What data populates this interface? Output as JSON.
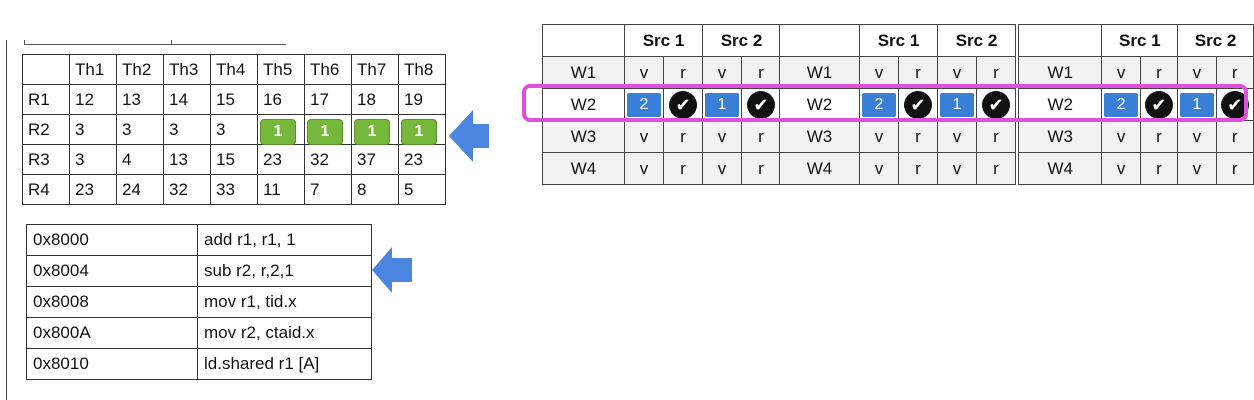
{
  "registers": {
    "header": [
      "",
      "Th1",
      "Th2",
      "Th3",
      "Th4",
      "Th5",
      "Th6",
      "Th7",
      "Th8"
    ],
    "rows": [
      {
        "name": "R1",
        "values": [
          "12",
          "13",
          "14",
          "15",
          "16",
          "17",
          "18",
          "19"
        ]
      },
      {
        "name": "R2",
        "values": [
          "3",
          "3",
          "3",
          "3",
          "1",
          "1",
          "1",
          "1"
        ]
      },
      {
        "name": "R3",
        "values": [
          "3",
          "4",
          "13",
          "15",
          "23",
          "32",
          "37",
          "23"
        ]
      },
      {
        "name": "R4",
        "values": [
          "23",
          "24",
          "32",
          "33",
          "11",
          "7",
          "8",
          "5"
        ]
      }
    ]
  },
  "instructions": [
    {
      "addr": "0x8000",
      "op": "add r1, r1, 1"
    },
    {
      "addr": "0x8004",
      "op": "sub r2, r,2,1"
    },
    {
      "addr": "0x8008",
      "op": "mov r1, tid.x"
    },
    {
      "addr": "0x800A",
      "op": "mov r2, ctaid.x"
    },
    {
      "addr": "0x8010",
      "op": "ld.shared r1 [A]"
    }
  ],
  "warp_tables": {
    "src1_label": "Src 1",
    "src2_label": "Src 2",
    "rows": [
      {
        "name": "W1",
        "s1v": "v",
        "s1r": "r",
        "s2v": "v",
        "s2r": "r"
      },
      {
        "name": "W2",
        "s1v": "2",
        "s1r": "✔",
        "s2v": "1",
        "s2r": "✔"
      },
      {
        "name": "W3",
        "s1v": "v",
        "s1r": "r",
        "s2v": "v",
        "s2r": "r"
      },
      {
        "name": "W4",
        "s1v": "v",
        "s1r": "r",
        "s2v": "v",
        "s2r": "r"
      }
    ]
  },
  "colors": {
    "green": "#76b83c",
    "blue": "#3a7fd6",
    "arrow": "#4a86e0",
    "highlight": "#e04fe0"
  }
}
